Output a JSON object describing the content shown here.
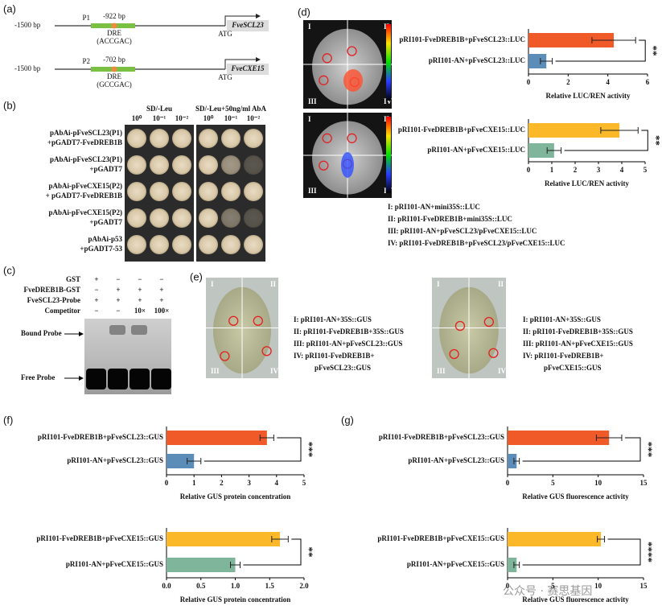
{
  "panel_labels": [
    "(a)",
    "(b)",
    "(c)",
    "(d)",
    "(e)",
    "(f)",
    "(g)"
  ],
  "a": {
    "constructs": [
      {
        "start": "-1500 bp",
        "promoter": "P1",
        "position": "-922 bp",
        "element": "DRE",
        "sequence": "(ACCGAC)",
        "atg": "ATG",
        "gene": "FveSCL23"
      },
      {
        "start": "-1500 bp",
        "promoter": "P2",
        "position": "-702 bp",
        "element": "DRE",
        "sequence": "(GCCGAC)",
        "atg": "ATG",
        "gene": "FveCXE15"
      }
    ]
  },
  "b": {
    "media": [
      "SD/-Leu",
      "SD/-Leu+50ng/ml AbA"
    ],
    "dilutions": [
      "10⁰",
      "10⁻¹",
      "10⁻²"
    ],
    "rows": [
      [
        "pAbAi-pFveSCL23(P1)",
        "+pGADT7-FveDREB1B"
      ],
      [
        "pAbAi-pFveSCL23(P1)",
        "+pGADT7"
      ],
      [
        "pAbAi-pFveCXE15(P2)",
        "+ pGADT7-FveDREB1B"
      ],
      [
        "pAbAi-pFveCXE15(P2)",
        "+pGADT7"
      ],
      [
        "pAbAi-p53",
        "+pGADT7-53"
      ]
    ]
  },
  "c": {
    "rows": [
      {
        "name": "GST",
        "lanes": [
          "+",
          "−",
          "−",
          "−"
        ]
      },
      {
        "name": "FveDREB1B-GST",
        "lanes": [
          "−",
          "+",
          "+",
          "+"
        ]
      },
      {
        "name": "FveSCL23-Probe",
        "lanes": [
          "+",
          "+",
          "+",
          "+"
        ]
      },
      {
        "name": "Competitor",
        "lanes": [
          "−",
          "−",
          "10×",
          "100×"
        ]
      }
    ],
    "bands": [
      "Bound Probe",
      "Free Probe"
    ]
  },
  "d": {
    "quadrants": [
      "I",
      "II",
      "III",
      "IV"
    ],
    "legend": [
      "I: pRI101-AN+mini35S::LUC",
      "II: pRI101-FveDREB1B+mini35S::LUC",
      "III: pRI101-AN+pFveSCL23/pFveCXE15::LUC",
      "IV: pRI101-FveDREB1B+pFveSCL23/pFveCXE15::LUC"
    ]
  },
  "e": {
    "quadrants": [
      "I",
      "II",
      "III",
      "IV"
    ],
    "legends": [
      [
        "I: pRI101-AN+35S::GUS",
        "II: pRI101-FveDREB1B+35S::GUS",
        "III: pRI101-AN+pFveSCL23::GUS",
        "IV: pRI101-FveDREB1B+",
        "pFveSCL23::GUS"
      ],
      [
        "I: pRI101-AN+35S::GUS",
        "II: pRI101-FveDREB1B+35S::GUS",
        "III: pRI101-AN+pFveCXE15::GUS",
        "IV: pRI101-FveDREB1B+",
        "pFveCXE15::GUS"
      ]
    ]
  },
  "watermark": "公众号 · 赛思基因",
  "chart_data": [
    {
      "type": "bar",
      "orientation": "horizontal",
      "categories": [
        "pRI101-FveDREB1B+pFveSCL23::LUC",
        "pRI101-AN+pFveSCL23::LUC"
      ],
      "values": [
        4.3,
        0.9
      ],
      "errors": [
        1.1,
        0.3
      ],
      "colors": [
        "#f05a28",
        "#5b8db8"
      ],
      "xlim": [
        0,
        6
      ],
      "xticks": [
        0,
        2,
        4,
        6
      ],
      "xlabel": "Relative LUC/REN activity",
      "significance": "**"
    },
    {
      "type": "bar",
      "orientation": "horizontal",
      "categories": [
        "pRI101-FveDREB1B+pFveCXE15::LUC",
        "pRI101-AN+pFveCXE15::LUC"
      ],
      "values": [
        3.9,
        1.1
      ],
      "errors": [
        0.8,
        0.3
      ],
      "colors": [
        "#fbb829",
        "#7fb59a"
      ],
      "xlim": [
        0,
        5
      ],
      "xticks": [
        0,
        1,
        2,
        3,
        4,
        5
      ],
      "xlabel": "Relative LUC/REN activity",
      "significance": "**"
    },
    {
      "type": "bar",
      "orientation": "horizontal",
      "categories": [
        "pRI101-FveDREB1B+pFveSCL23::GUS",
        "pRI101-AN+pFveSCL23::GUS"
      ],
      "values": [
        3.65,
        1.0
      ],
      "errors": [
        0.25,
        0.25
      ],
      "colors": [
        "#f05a28",
        "#5b8db8"
      ],
      "xlim": [
        0,
        5
      ],
      "xticks": [
        0,
        1,
        2,
        3,
        4,
        5
      ],
      "xlabel": "Relative GUS protein concentration",
      "significance": "***"
    },
    {
      "type": "bar",
      "orientation": "horizontal",
      "categories": [
        "pRI101-FveDREB1B+pFveCXE15::GUS",
        "pRI101-AN+pFveCXE15::GUS"
      ],
      "values": [
        1.65,
        1.0
      ],
      "errors": [
        0.12,
        0.07
      ],
      "colors": [
        "#fbb829",
        "#7fb59a"
      ],
      "xlim": [
        0,
        2
      ],
      "xticks": [
        {
          "value": 0,
          "label": "0.0"
        },
        {
          "value": 0.5,
          "label": "0.5"
        },
        {
          "value": 1,
          "label": "1.0"
        },
        {
          "value": 1.5,
          "label": "1.5"
        },
        {
          "value": 2,
          "label": "2.0"
        }
      ],
      "xlabel": "Relative GUS protein concentration",
      "significance": "**"
    },
    {
      "type": "bar",
      "orientation": "horizontal",
      "categories": [
        "pRI101-FveDREB1B+pFveSCL23::GUS",
        "pRI101-AN+pFveSCL23::GUS"
      ],
      "values": [
        11.2,
        1.0
      ],
      "errors": [
        1.4,
        0.3
      ],
      "colors": [
        "#f05a28",
        "#5b8db8"
      ],
      "xlim": [
        0,
        15
      ],
      "xticks": [
        0,
        5,
        10,
        15
      ],
      "xlabel": "Relative GUS fluorescence activity",
      "significance": "***"
    },
    {
      "type": "bar",
      "orientation": "horizontal",
      "categories": [
        "pRI101-FveDREB1B+pFveCXE15::GUS",
        "pRI101-AN+pFveCXE15::GUS"
      ],
      "values": [
        10.3,
        1.0
      ],
      "errors": [
        0.4,
        0.3
      ],
      "colors": [
        "#fbb829",
        "#7fb59a"
      ],
      "xlim": [
        0,
        15
      ],
      "xticks": [
        0,
        5,
        10,
        15
      ],
      "xlabel": "Relative GUS fluorescence activity",
      "significance": "****"
    }
  ]
}
